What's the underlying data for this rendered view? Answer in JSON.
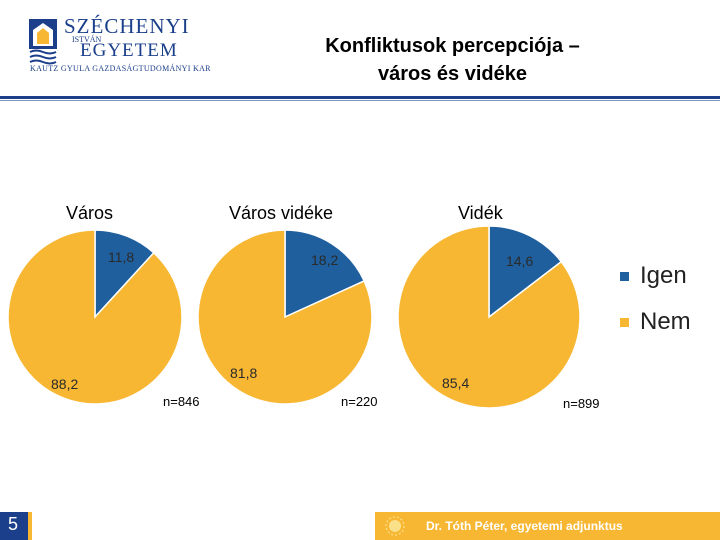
{
  "header": {
    "logo": {
      "name_line1": "SZÉCHENYI",
      "name_line2": "ISTVÁN",
      "name_line3": "EGYETEM",
      "subtitle": "KAUTZ GYULA GAZDASÁGTUDOMÁNYI KAR"
    },
    "title_line1": "Konfliktusok percepciója –",
    "title_line2": "város és vidéke"
  },
  "colors": {
    "igen": "#1f5f9e",
    "nem": "#f7b733",
    "brand_blue": "#1b3f8a"
  },
  "chart_data": [
    {
      "type": "pie",
      "title": "Város",
      "categories": [
        "Igen",
        "Nem"
      ],
      "values": [
        11.8,
        88.2
      ],
      "labels": [
        "11,8",
        "88,2"
      ],
      "n_label": "n=846"
    },
    {
      "type": "pie",
      "title": "Város vidéke",
      "categories": [
        "Igen",
        "Nem"
      ],
      "values": [
        18.2,
        81.8
      ],
      "labels": [
        "18,2",
        "81,8"
      ],
      "n_label": "n=220"
    },
    {
      "type": "pie",
      "title": "Vidék",
      "categories": [
        "Igen",
        "Nem"
      ],
      "values": [
        14.6,
        85.4
      ],
      "labels": [
        "14,6",
        "85,4"
      ],
      "n_label": "n=899"
    }
  ],
  "legend": {
    "position": "right",
    "items": [
      "Igen",
      "Nem"
    ]
  },
  "footer": {
    "page_number": "5",
    "author": "Dr. Tóth Péter, egyetemi adjunktus"
  }
}
